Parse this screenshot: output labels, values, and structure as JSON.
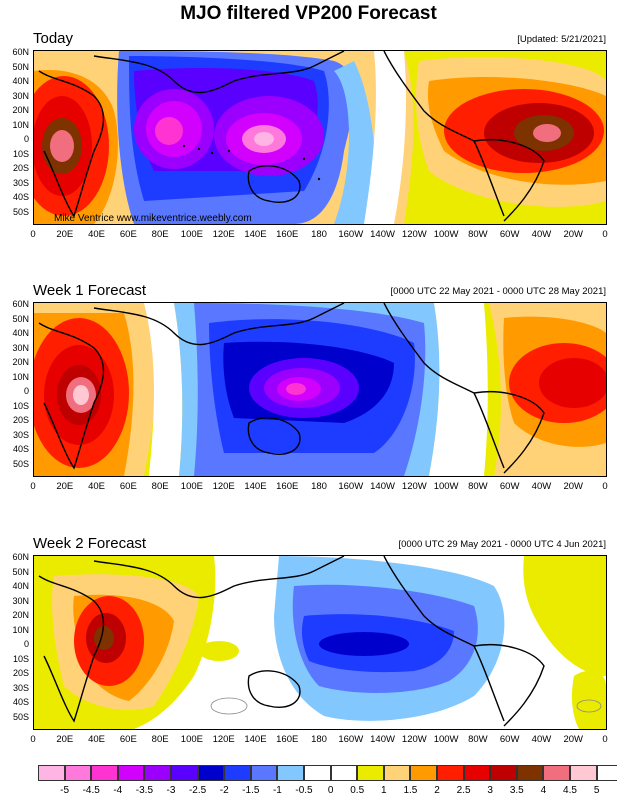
{
  "title": "MJO filtered VP200 Forecast",
  "panels": [
    {
      "label": "Today",
      "right_text": "[Updated: 5/21/2021]",
      "credit": "Mike Ventrice www.mikeventrice.weebly.com"
    },
    {
      "label": "Week 1 Forecast",
      "right_text": "[0000 UTC 22 May 2021 - 0000 UTC 28 May 2021]",
      "credit": ""
    },
    {
      "label": "Week 2 Forecast",
      "right_text": "[0000 UTC 29 May 2021 - 0000 UTC 4 Jun 2021]",
      "credit": ""
    }
  ],
  "axes": {
    "lat_labels": [
      "60N",
      "50N",
      "40N",
      "30N",
      "20N",
      "10N",
      "0",
      "10S",
      "20S",
      "30S",
      "40S",
      "50S"
    ],
    "lon_labels": [
      "0",
      "20E",
      "40E",
      "60E",
      "80E",
      "100E",
      "120E",
      "140E",
      "160E",
      "180",
      "160W",
      "140W",
      "120W",
      "100W",
      "80W",
      "60W",
      "40W",
      "20W",
      "0"
    ]
  },
  "colorbar": {
    "labels": [
      "-5",
      "-4.5",
      "-4",
      "-3.5",
      "-3",
      "-2.5",
      "-2",
      "-1.5",
      "-1",
      "-0.5",
      "0",
      "0.5",
      "1",
      "1.5",
      "2",
      "2.5",
      "3",
      "3.5",
      "4",
      "4.5",
      "5"
    ],
    "colors": [
      "#ffb4e6",
      "#ff78dc",
      "#ff32d2",
      "#d200ff",
      "#9b00ff",
      "#5a00ff",
      "#0000cc",
      "#1e3cff",
      "#5a78ff",
      "#82c8ff",
      "#ffffff",
      "#ffffff",
      "#ebeb00",
      "#ffd278",
      "#ff9b00",
      "#ff1e00",
      "#e60000",
      "#be0000",
      "#7d3200",
      "#f06e7d",
      "#ffc8d2",
      "#ffffff"
    ]
  }
}
